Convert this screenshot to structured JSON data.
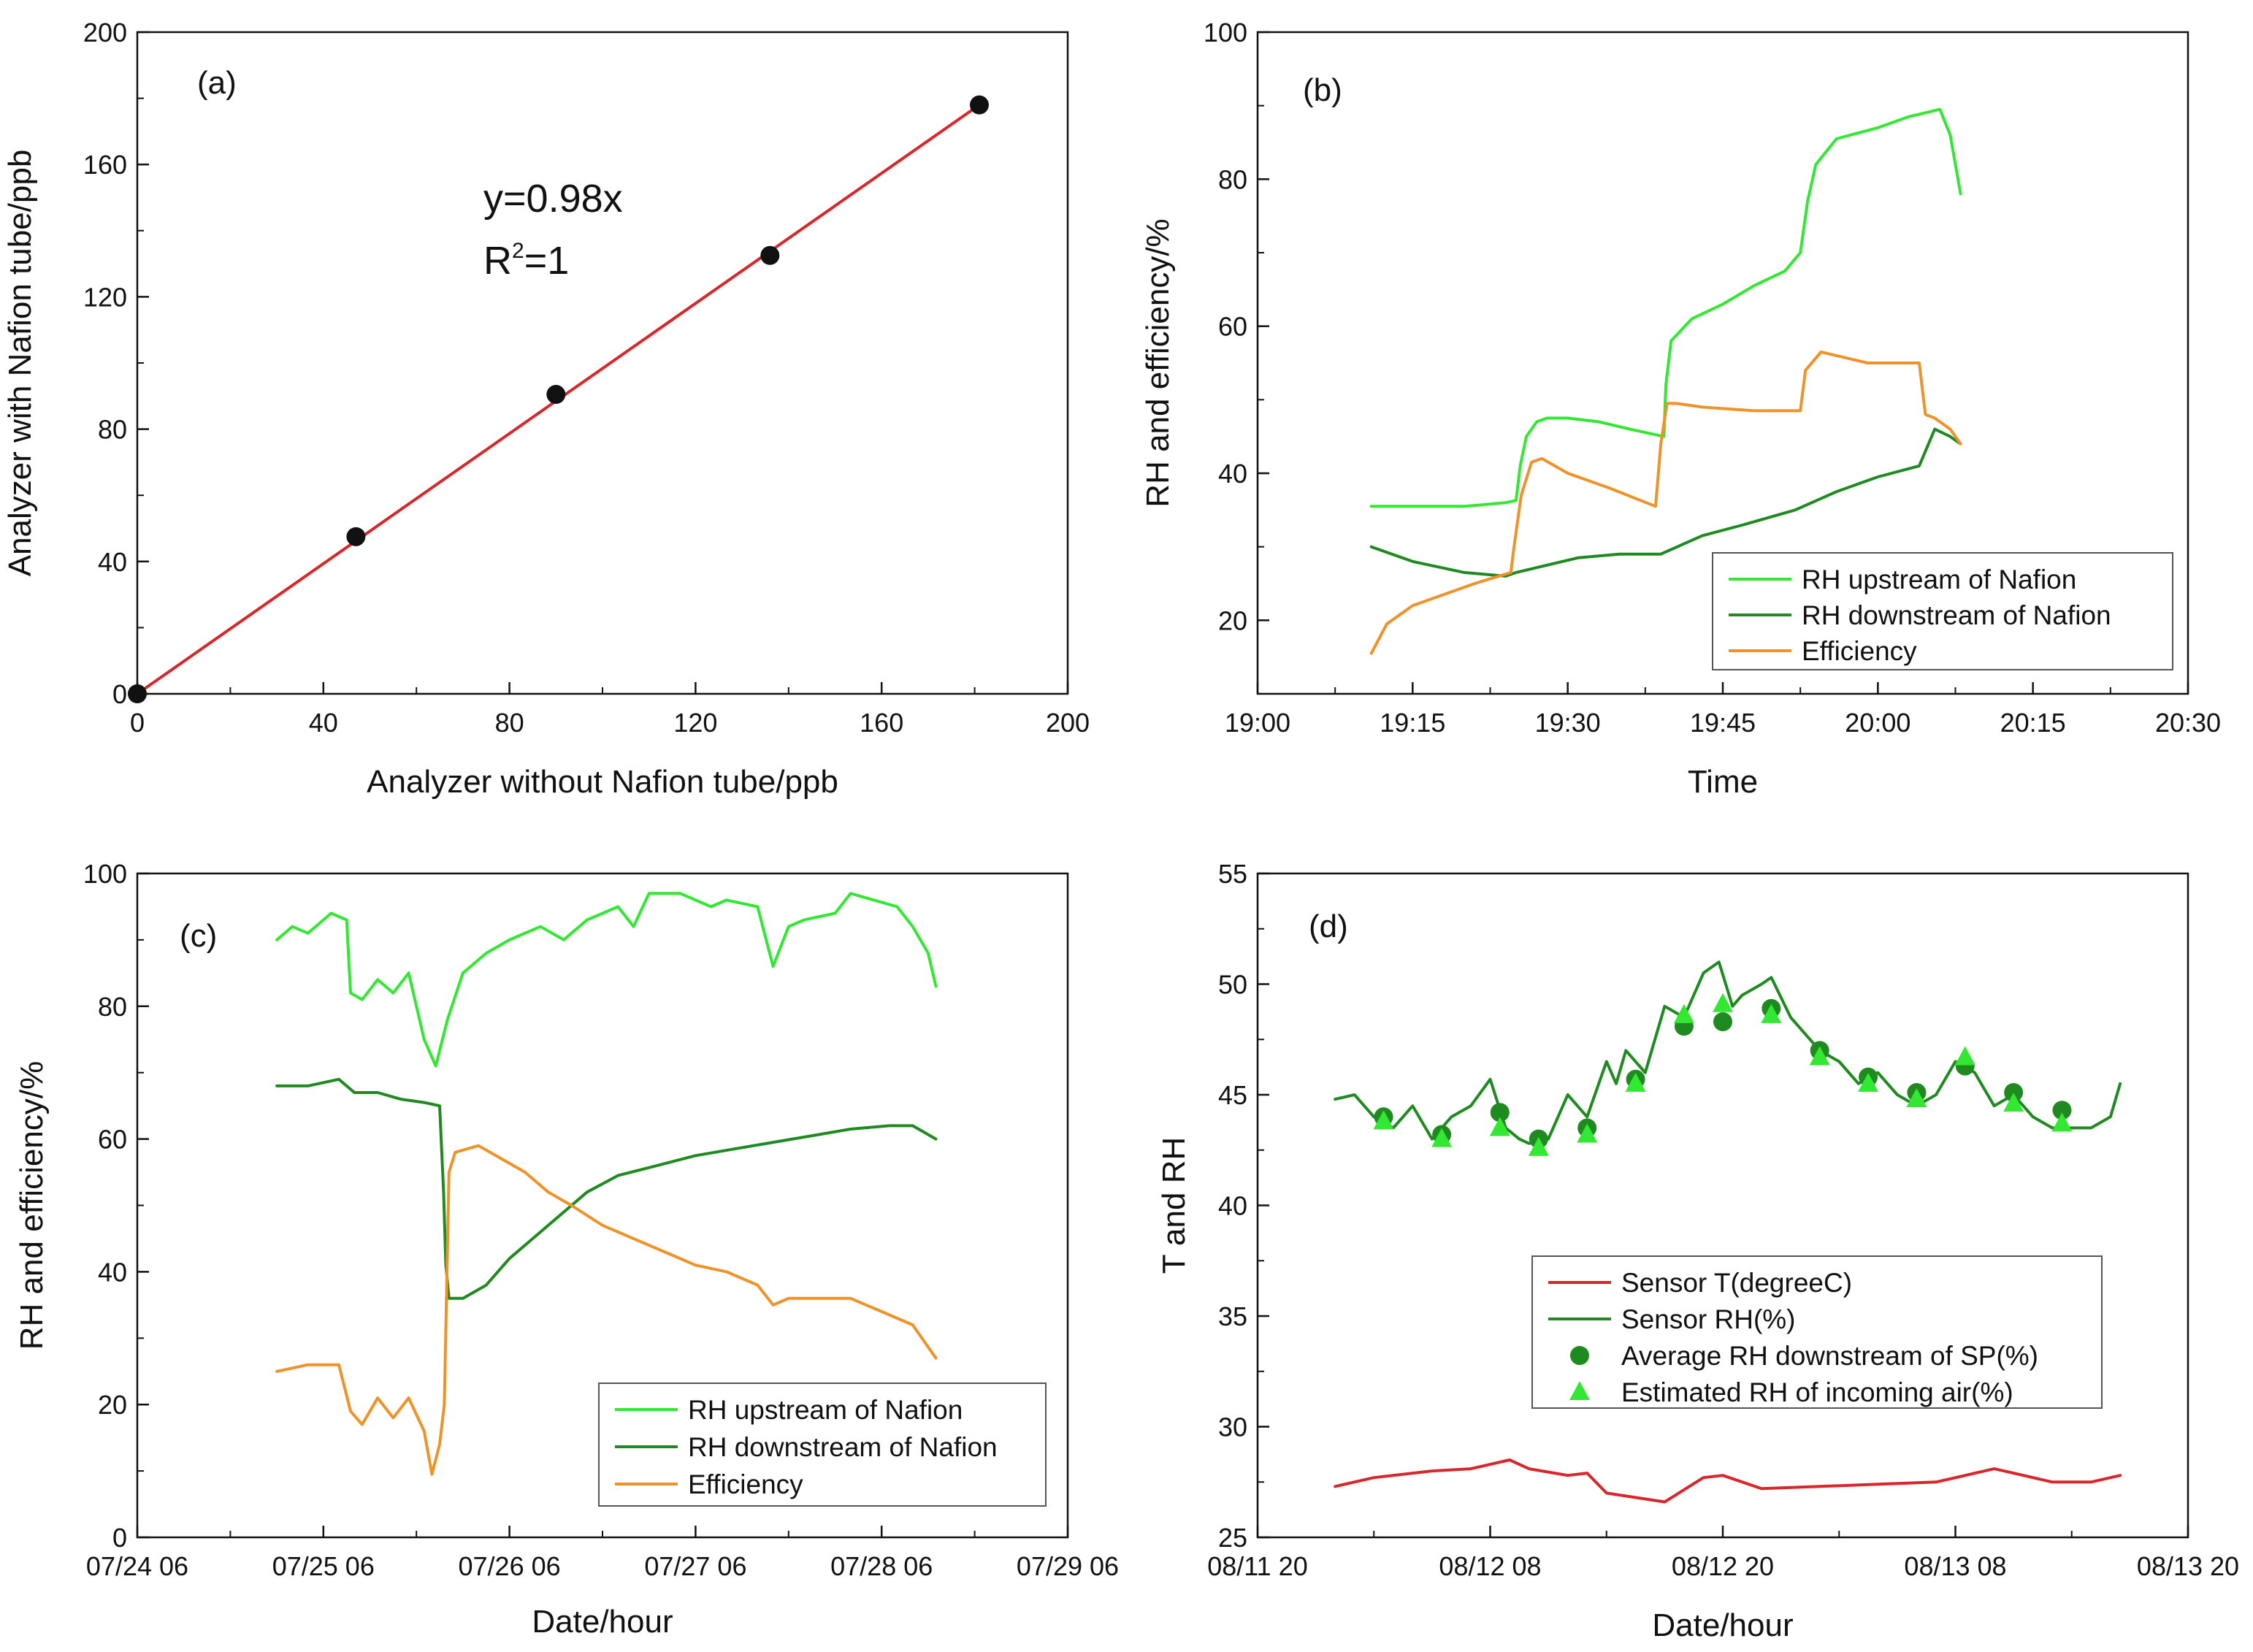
{
  "colors": {
    "light_green": "#33e833",
    "dark_green": "#1f8a1f",
    "orange": "#f0922a",
    "red": "#d8262a",
    "black": "#111111",
    "marker_green": "#1f8a1f",
    "triangle_green": "#33e833"
  },
  "chart_data": [
    {
      "id": "a",
      "type": "scatter",
      "panel_label": "(a)",
      "xlabel": "Analyzer without Nafion tube/ppb",
      "ylabel": "Analyzer with Nafion tube/ppb",
      "xlim": [
        0,
        200
      ],
      "ylim": [
        0,
        200
      ],
      "xticks": [
        0,
        40,
        80,
        120,
        160,
        200
      ],
      "yticks": [
        0,
        40,
        80,
        120,
        160,
        200
      ],
      "xtick_labels": [
        "0",
        "40",
        "80",
        "120",
        "160",
        "200"
      ],
      "ytick_labels": [
        "0",
        "40",
        "80",
        "120",
        "160",
        "200"
      ],
      "points": {
        "x": [
          0,
          47,
          90,
          136,
          181
        ],
        "y": [
          0,
          47.5,
          90.5,
          132.5,
          178
        ]
      },
      "fit": {
        "x": [
          0,
          181
        ],
        "y": [
          0,
          178
        ]
      },
      "equation": "y=0.98x",
      "r2_base": "R",
      "r2_sup": "2",
      "r2_rest": "=1"
    },
    {
      "id": "b",
      "type": "line",
      "panel_label": "(b)",
      "xlabel": "Time",
      "ylabel": "RH and efficiency/%",
      "xlim": [
        0,
        90
      ],
      "ylim": [
        10,
        100
      ],
      "xticks": [
        0,
        15,
        30,
        45,
        60,
        75,
        90
      ],
      "yticks": [
        20,
        40,
        60,
        80,
        100
      ],
      "xtick_labels": [
        "19:00",
        "19:15",
        "19:30",
        "19:45",
        "20:00",
        "20:15",
        "20:30"
      ],
      "ytick_labels": [
        "20",
        "40",
        "60",
        "80",
        "100"
      ],
      "legend": [
        "RH upstream of Nafion",
        "RH downstream of Nafion",
        "Efficiency"
      ],
      "series": [
        {
          "name": "RH upstream of Nafion",
          "color_key": "light_green",
          "x": [
            11,
            15,
            20,
            24,
            25,
            25.4,
            26,
            27,
            28,
            30,
            33,
            36,
            39.3,
            39.5,
            40,
            42,
            45,
            48,
            51,
            52.5,
            53.2,
            54,
            56,
            60,
            63,
            66,
            67,
            68
          ],
          "y": [
            35.5,
            35.5,
            35.5,
            36,
            36.3,
            41,
            45,
            47,
            47.5,
            47.5,
            47,
            46,
            45,
            52,
            58,
            61,
            63,
            65.5,
            67.5,
            70,
            77,
            82,
            85.5,
            87,
            88.5,
            89.5,
            86,
            78
          ]
        },
        {
          "name": "RH downstream of Nafion",
          "color_key": "dark_green",
          "x": [
            11,
            15,
            20,
            24,
            25,
            28,
            31,
            35,
            39,
            43,
            47,
            52,
            56,
            60,
            64,
            65.5,
            67,
            68
          ],
          "y": [
            30,
            28,
            26.5,
            26,
            26.5,
            27.5,
            28.5,
            29,
            29,
            31.5,
            33,
            35,
            37.5,
            39.5,
            41,
            46,
            45,
            44
          ]
        },
        {
          "name": "Efficiency",
          "color_key": "orange",
          "x": [
            11,
            12.5,
            15,
            18,
            21,
            24.5,
            24.8,
            25.5,
            26.5,
            27.5,
            30,
            34,
            38.5,
            39,
            39.6,
            40.5,
            43,
            48,
            52.5,
            53,
            54.5,
            56,
            59,
            62,
            64,
            64.6,
            65.5,
            67,
            68
          ],
          "y": [
            15.5,
            19.5,
            22,
            23.5,
            25,
            26.5,
            30,
            37,
            41.5,
            42,
            40,
            38,
            35.5,
            44,
            49.5,
            49.5,
            49,
            48.5,
            48.5,
            54,
            56.5,
            56,
            55,
            55,
            55,
            48,
            47.5,
            46,
            44
          ]
        }
      ]
    },
    {
      "id": "c",
      "type": "line",
      "panel_label": "(c)",
      "xlabel": "Date/hour",
      "ylabel": "RH and efficiency/%",
      "xlim": [
        0,
        120
      ],
      "ylim": [
        0,
        100
      ],
      "xticks": [
        0,
        24,
        48,
        72,
        96,
        120
      ],
      "yticks": [
        0,
        20,
        40,
        60,
        80,
        100
      ],
      "xtick_labels": [
        "07/24 06",
        "07/25 06",
        "07/26 06",
        "07/27 06",
        "07/28 06",
        "07/29 06"
      ],
      "ytick_labels": [
        "0",
        "20",
        "40",
        "60",
        "80",
        "100"
      ],
      "legend": [
        "RH upstream of Nafion",
        "RH downstream of Nafion",
        "Efficiency"
      ],
      "series": [
        {
          "name": "RH upstream of Nafion",
          "color_key": "light_green",
          "x": [
            18,
            20,
            22,
            25,
            27,
            27.5,
            29,
            31,
            33,
            35,
            37,
            38.5,
            40,
            42,
            45,
            48,
            52,
            55,
            58,
            62,
            64,
            66,
            70,
            74,
            76,
            80,
            82,
            84,
            86,
            90,
            92,
            95,
            98,
            100,
            102,
            103
          ],
          "y": [
            90,
            92,
            91,
            94,
            93,
            82,
            81,
            84,
            82,
            85,
            75,
            71,
            78,
            85,
            88,
            90,
            92,
            90,
            93,
            95,
            92,
            97,
            97,
            95,
            96,
            95,
            86,
            92,
            93,
            94,
            97,
            96,
            95,
            92,
            88,
            83
          ]
        },
        {
          "name": "RH downstream of Nafion",
          "color_key": "dark_green",
          "x": [
            18,
            22,
            26,
            28,
            31,
            34,
            37,
            39,
            39.5,
            39.8,
            40.2,
            42,
            45,
            48,
            51,
            54,
            58,
            62,
            67,
            72,
            77,
            82,
            87,
            92,
            97,
            100,
            103
          ],
          "y": [
            68,
            68,
            69,
            67,
            67,
            66,
            65.5,
            65,
            52,
            41,
            36,
            36,
            38,
            42,
            45,
            48,
            52,
            54.5,
            56,
            57.5,
            58.5,
            59.5,
            60.5,
            61.5,
            62,
            62,
            60
          ]
        },
        {
          "name": "Efficiency",
          "color_key": "orange",
          "x": [
            18,
            22,
            26,
            27.5,
            29,
            31,
            33,
            35,
            37,
            38,
            39,
            39.6,
            40.2,
            41,
            44,
            47,
            50,
            53,
            56,
            60,
            64,
            68,
            72,
            76,
            80,
            82,
            84,
            88,
            92,
            96,
            100,
            103
          ],
          "y": [
            25,
            26,
            26,
            19,
            17,
            21,
            18,
            21,
            16,
            9.5,
            14,
            20,
            55,
            58,
            59,
            57,
            55,
            52,
            50,
            47,
            45,
            43,
            41,
            40,
            38,
            35,
            36,
            36,
            36,
            34,
            32,
            27
          ]
        }
      ]
    },
    {
      "id": "d",
      "type": "line",
      "panel_label": "(d)",
      "xlabel": "Date/hour",
      "ylabel": "T and RH",
      "xlim": [
        0,
        48
      ],
      "ylim": [
        25,
        55
      ],
      "xticks": [
        0,
        12,
        24,
        36,
        48
      ],
      "yticks": [
        25,
        30,
        35,
        40,
        45,
        50,
        55
      ],
      "xtick_labels": [
        "08/11 20",
        "08/12 08",
        "08/12 20",
        "08/13 08",
        "08/13 20"
      ],
      "ytick_labels": [
        "25",
        "30",
        "35",
        "40",
        "45",
        "50",
        "55"
      ],
      "legend": [
        "Sensor T(degreeC)",
        "Sensor RH(%)",
        "Average RH downstream of SP(%)",
        "Estimated RH of incoming air(%)"
      ],
      "series": [
        {
          "name": "Sensor T(degreeC)",
          "color_key": "red",
          "x": [
            4,
            6,
            9,
            11,
            13,
            14,
            16,
            17,
            18,
            21,
            23,
            24,
            26,
            29,
            32,
            35,
            38,
            39,
            41,
            43,
            44.5
          ],
          "y": [
            27.3,
            27.7,
            28,
            28.1,
            28.5,
            28.1,
            27.8,
            27.9,
            27,
            26.6,
            27.7,
            27.8,
            27.2,
            27.3,
            27.4,
            27.5,
            28.1,
            27.9,
            27.5,
            27.5,
            27.8
          ]
        },
        {
          "name": "Sensor RH(%)",
          "color_key": "dark_green",
          "x": [
            4,
            5,
            6,
            7,
            8,
            9,
            10,
            11,
            12,
            12.8,
            13.5,
            14,
            15,
            16,
            17,
            18,
            18.5,
            19,
            20,
            21,
            22,
            23,
            23.8,
            24.5,
            25,
            26,
            26.5,
            27.5,
            29,
            30,
            31,
            32,
            33,
            34,
            35,
            36,
            37,
            38,
            39,
            40,
            41,
            42,
            43,
            44,
            44.5
          ],
          "y": [
            44.8,
            45,
            44,
            43.5,
            44.5,
            43,
            44,
            44.5,
            45.7,
            43.5,
            43,
            42.8,
            43,
            45,
            44,
            46.5,
            45.5,
            47,
            46,
            49,
            48.5,
            50.5,
            51,
            49,
            49.5,
            50,
            50.3,
            48.5,
            47,
            46.5,
            45.5,
            46,
            45,
            44.5,
            45,
            46.5,
            46,
            44.5,
            45,
            44,
            43.5,
            43.5,
            43.5,
            44,
            45.5
          ]
        },
        {
          "name": "Average RH downstream of SP(%)",
          "color_key": "marker_green",
          "marker": "circle",
          "x": [
            6.5,
            9.5,
            12.5,
            14.5,
            17,
            19.5,
            22,
            24,
            26.5,
            29,
            31.5,
            34,
            36.5,
            39,
            41.5
          ],
          "y": [
            44,
            43.2,
            44.2,
            43,
            43.5,
            45.7,
            48.1,
            48.3,
            48.9,
            47,
            45.8,
            45.1,
            46.3,
            45.1,
            44.3
          ]
        },
        {
          "name": "Estimated RH of incoming air(%)",
          "color_key": "triangle_green",
          "marker": "triangle",
          "x": [
            6.5,
            9.5,
            12.5,
            14.5,
            17,
            19.5,
            22,
            24,
            26.5,
            29,
            31.5,
            34,
            36.5,
            39,
            41.5
          ],
          "y": [
            43.8,
            43,
            43.5,
            42.6,
            43.2,
            45.5,
            48.6,
            49.1,
            48.6,
            46.7,
            45.5,
            44.8,
            46.7,
            44.6,
            43.7
          ]
        }
      ]
    }
  ]
}
